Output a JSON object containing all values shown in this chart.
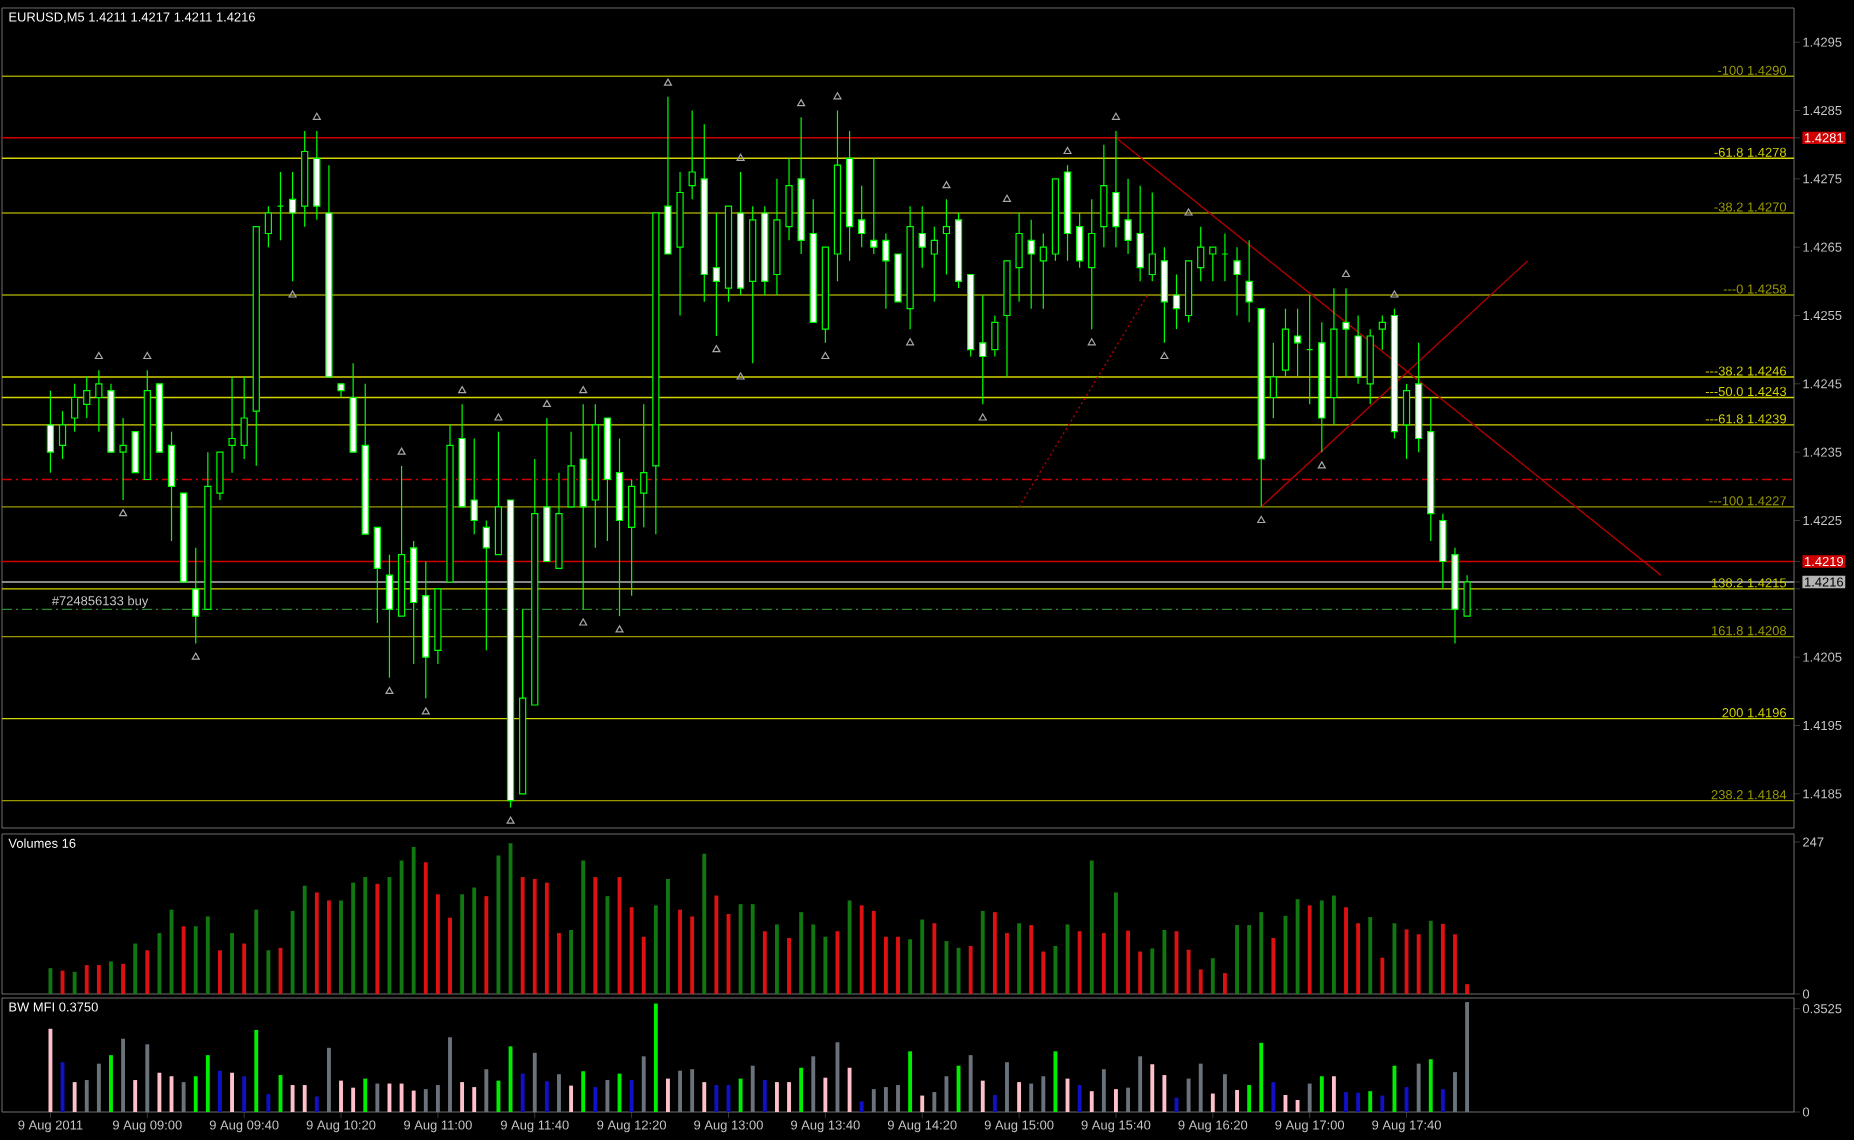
{
  "chart_data": [
    {
      "type": "candlestick",
      "title": "EURUSD,M5  1.4211 1.4217 1.4211 1.4216",
      "color": "#00ff00",
      "x": [
        "2011-08-09T08:20",
        "2011-08-09T08:25",
        "2011-08-09T08:30",
        "2011-08-09T08:35",
        "2011-08-09T08:40",
        "2011-08-09T08:45",
        "2011-08-09T08:50",
        "2011-08-09T08:55",
        "2011-08-09T09:00",
        "2011-08-09T09:05",
        "2011-08-09T09:10",
        "2011-08-09T09:15",
        "2011-08-09T09:20",
        "2011-08-09T09:25",
        "2011-08-09T09:30",
        "2011-08-09T09:35",
        "2011-08-09T09:40",
        "2011-08-09T09:45",
        "2011-08-09T09:50",
        "2011-08-09T09:55",
        "2011-08-09T10:00",
        "2011-08-09T10:05",
        "2011-08-09T10:10",
        "2011-08-09T10:15",
        "2011-08-09T10:20",
        "2011-08-09T10:25",
        "2011-08-09T10:30",
        "2011-08-09T10:35",
        "2011-08-09T10:40",
        "2011-08-09T10:45",
        "2011-08-09T10:50",
        "2011-08-09T10:55",
        "2011-08-09T11:00",
        "2011-08-09T11:05",
        "2011-08-09T11:10",
        "2011-08-09T11:15",
        "2011-08-09T11:20",
        "2011-08-09T11:25",
        "2011-08-09T11:30",
        "2011-08-09T11:35",
        "2011-08-09T11:40",
        "2011-08-09T11:45",
        "2011-08-09T11:50",
        "2011-08-09T11:55",
        "2011-08-09T12:00",
        "2011-08-09T12:05",
        "2011-08-09T12:10",
        "2011-08-09T12:15",
        "2011-08-09T12:20",
        "2011-08-09T12:25",
        "2011-08-09T12:30",
        "2011-08-09T12:35",
        "2011-08-09T12:40",
        "2011-08-09T12:45",
        "2011-08-09T12:50",
        "2011-08-09T12:55",
        "2011-08-09T13:00",
        "2011-08-09T13:05",
        "2011-08-09T13:10",
        "2011-08-09T13:15",
        "2011-08-09T13:20",
        "2011-08-09T13:25",
        "2011-08-09T13:30",
        "2011-08-09T13:35",
        "2011-08-09T13:40",
        "2011-08-09T13:45",
        "2011-08-09T13:50",
        "2011-08-09T13:55",
        "2011-08-09T14:00",
        "2011-08-09T14:05",
        "2011-08-09T14:10",
        "2011-08-09T14:15",
        "2011-08-09T14:20",
        "2011-08-09T14:25",
        "2011-08-09T14:30",
        "2011-08-09T14:35",
        "2011-08-09T14:40",
        "2011-08-09T14:45",
        "2011-08-09T14:50",
        "2011-08-09T14:55",
        "2011-08-09T15:00",
        "2011-08-09T15:05",
        "2011-08-09T15:10",
        "2011-08-09T15:15",
        "2011-08-09T15:20",
        "2011-08-09T15:25",
        "2011-08-09T15:30",
        "2011-08-09T15:35",
        "2011-08-09T15:40",
        "2011-08-09T15:45",
        "2011-08-09T15:50",
        "2011-08-09T15:55",
        "2011-08-09T16:00",
        "2011-08-09T16:05",
        "2011-08-09T16:10",
        "2011-08-09T16:15",
        "2011-08-09T16:20",
        "2011-08-09T16:25",
        "2011-08-09T16:30",
        "2011-08-09T16:35",
        "2011-08-09T16:40",
        "2011-08-09T16:45",
        "2011-08-09T16:50",
        "2011-08-09T16:55",
        "2011-08-09T17:00",
        "2011-08-09T17:05",
        "2011-08-09T17:10",
        "2011-08-09T17:15",
        "2011-08-09T17:20",
        "2011-08-09T17:25",
        "2011-08-09T17:30",
        "2011-08-09T17:35",
        "2011-08-09T17:40",
        "2011-08-09T17:45",
        "2011-08-09T17:50",
        "2011-08-09T17:55",
        "2011-08-09T18:00",
        "2011-08-09T18:05"
      ],
      "ohlc": [
        [
          1.4239,
          1.4244,
          1.4232,
          1.4235
        ],
        [
          1.4236,
          1.4241,
          1.4234,
          1.4239
        ],
        [
          1.424,
          1.4245,
          1.4238,
          1.4243
        ],
        [
          1.4242,
          1.4246,
          1.424,
          1.4244
        ],
        [
          1.4243,
          1.4247,
          1.4238,
          1.4245
        ],
        [
          1.4244,
          1.4245,
          1.4235,
          1.4235
        ],
        [
          1.4235,
          1.424,
          1.4228,
          1.4236
        ],
        [
          1.4238,
          1.4238,
          1.4232,
          1.4232
        ],
        [
          1.4231,
          1.4247,
          1.4231,
          1.4244
        ],
        [
          1.4245,
          1.4245,
          1.4235,
          1.4235
        ],
        [
          1.4236,
          1.4238,
          1.4222,
          1.423
        ],
        [
          1.4229,
          1.4229,
          1.4216,
          1.4216
        ],
        [
          1.4215,
          1.4221,
          1.4207,
          1.4211
        ],
        [
          1.4212,
          1.4235,
          1.4212,
          1.423
        ],
        [
          1.4229,
          1.4235,
          1.4228,
          1.4235
        ],
        [
          1.4236,
          1.4246,
          1.4232,
          1.4237
        ],
        [
          1.4236,
          1.4246,
          1.4234,
          1.424
        ],
        [
          1.4241,
          1.4268,
          1.4233,
          1.4268
        ],
        [
          1.4267,
          1.4271,
          1.4265,
          1.427
        ],
        [
          1.4271,
          1.4276,
          1.4266,
          1.4271
        ],
        [
          1.4272,
          1.4276,
          1.426,
          1.427
        ],
        [
          1.4271,
          1.4282,
          1.4268,
          1.4279
        ],
        [
          1.4278,
          1.4282,
          1.4269,
          1.4271
        ],
        [
          1.427,
          1.4277,
          1.4246,
          1.4246
        ],
        [
          1.4245,
          1.4245,
          1.4243,
          1.4244
        ],
        [
          1.4243,
          1.4248,
          1.4235,
          1.4235
        ],
        [
          1.4236,
          1.4245,
          1.4223,
          1.4223
        ],
        [
          1.4224,
          1.4224,
          1.421,
          1.4218
        ],
        [
          1.4217,
          1.422,
          1.4202,
          1.4212
        ],
        [
          1.4211,
          1.4233,
          1.4211,
          1.422
        ],
        [
          1.4221,
          1.4222,
          1.4204,
          1.4213
        ],
        [
          1.4214,
          1.4219,
          1.4199,
          1.4205
        ],
        [
          1.4206,
          1.4215,
          1.4204,
          1.4215
        ],
        [
          1.4216,
          1.4239,
          1.4216,
          1.4236
        ],
        [
          1.4237,
          1.4242,
          1.4227,
          1.4227
        ],
        [
          1.4228,
          1.4237,
          1.4223,
          1.4225
        ],
        [
          1.4224,
          1.4225,
          1.4206,
          1.4221
        ],
        [
          1.422,
          1.4238,
          1.422,
          1.4227
        ],
        [
          1.4228,
          1.4228,
          1.4183,
          1.4184
        ],
        [
          1.4185,
          1.4212,
          1.4185,
          1.4199
        ],
        [
          1.4198,
          1.4234,
          1.4198,
          1.4226
        ],
        [
          1.4227,
          1.424,
          1.4219,
          1.4219
        ],
        [
          1.4218,
          1.4232,
          1.4218,
          1.4226
        ],
        [
          1.4227,
          1.4238,
          1.4227,
          1.4233
        ],
        [
          1.4234,
          1.4242,
          1.4212,
          1.4227
        ],
        [
          1.4228,
          1.4242,
          1.4221,
          1.4239
        ],
        [
          1.424,
          1.424,
          1.4222,
          1.4231
        ],
        [
          1.4232,
          1.4237,
          1.4211,
          1.4225
        ],
        [
          1.4224,
          1.4231,
          1.4214,
          1.423
        ],
        [
          1.4229,
          1.4242,
          1.4224,
          1.4232
        ],
        [
          1.4233,
          1.427,
          1.4223,
          1.427
        ],
        [
          1.4271,
          1.4287,
          1.4264,
          1.4264
        ],
        [
          1.4265,
          1.4276,
          1.4255,
          1.4273
        ],
        [
          1.4274,
          1.4285,
          1.4272,
          1.4276
        ],
        [
          1.4275,
          1.4283,
          1.4257,
          1.4261
        ],
        [
          1.4262,
          1.427,
          1.4252,
          1.426
        ],
        [
          1.4259,
          1.4271,
          1.4257,
          1.4271
        ],
        [
          1.427,
          1.4276,
          1.4258,
          1.4259
        ],
        [
          1.426,
          1.4271,
          1.4248,
          1.4269
        ],
        [
          1.427,
          1.4271,
          1.4258,
          1.426
        ],
        [
          1.4261,
          1.4275,
          1.4258,
          1.4269
        ],
        [
          1.4268,
          1.4278,
          1.4266,
          1.4274
        ],
        [
          1.4275,
          1.4284,
          1.4264,
          1.4266
        ],
        [
          1.4267,
          1.4272,
          1.4254,
          1.4254
        ],
        [
          1.4253,
          1.4265,
          1.4251,
          1.4265
        ],
        [
          1.4264,
          1.4285,
          1.426,
          1.4277
        ],
        [
          1.4278,
          1.4282,
          1.4263,
          1.4268
        ],
        [
          1.4269,
          1.4274,
          1.4265,
          1.4267
        ],
        [
          1.4266,
          1.4278,
          1.4264,
          1.4265
        ],
        [
          1.4266,
          1.4267,
          1.4256,
          1.4263
        ],
        [
          1.4264,
          1.4264,
          1.4257,
          1.4257
        ],
        [
          1.4256,
          1.4271,
          1.4253,
          1.4268
        ],
        [
          1.4267,
          1.4271,
          1.4262,
          1.4265
        ],
        [
          1.4264,
          1.4268,
          1.4257,
          1.4266
        ],
        [
          1.4267,
          1.4272,
          1.4261,
          1.4268
        ],
        [
          1.4269,
          1.427,
          1.4259,
          1.426
        ],
        [
          1.4261,
          1.4261,
          1.4249,
          1.425
        ],
        [
          1.4251,
          1.4258,
          1.4242,
          1.4249
        ],
        [
          1.425,
          1.4255,
          1.4249,
          1.4254
        ],
        [
          1.4255,
          1.4263,
          1.4246,
          1.4263
        ],
        [
          1.4262,
          1.427,
          1.4257,
          1.4267
        ],
        [
          1.4266,
          1.4269,
          1.4256,
          1.4264
        ],
        [
          1.4263,
          1.4267,
          1.4256,
          1.4265
        ],
        [
          1.4264,
          1.4275,
          1.4263,
          1.4275
        ],
        [
          1.4276,
          1.4277,
          1.4263,
          1.4267
        ],
        [
          1.4268,
          1.427,
          1.4262,
          1.4263
        ],
        [
          1.4262,
          1.4272,
          1.4253,
          1.4267
        ],
        [
          1.4268,
          1.428,
          1.4265,
          1.4274
        ],
        [
          1.4273,
          1.4282,
          1.4265,
          1.4268
        ],
        [
          1.4269,
          1.4275,
          1.4264,
          1.4266
        ],
        [
          1.4267,
          1.4274,
          1.426,
          1.4262
        ],
        [
          1.4261,
          1.4273,
          1.426,
          1.4264
        ],
        [
          1.4263,
          1.4265,
          1.4251,
          1.4257
        ],
        [
          1.4258,
          1.4261,
          1.4253,
          1.4256
        ],
        [
          1.4255,
          1.4263,
          1.4254,
          1.4263
        ],
        [
          1.4262,
          1.4268,
          1.426,
          1.4265
        ],
        [
          1.4264,
          1.4265,
          1.426,
          1.4265
        ],
        [
          1.4264,
          1.4267,
          1.426,
          1.4264
        ],
        [
          1.4263,
          1.4265,
          1.4255,
          1.4261
        ],
        [
          1.426,
          1.4266,
          1.4254,
          1.4257
        ],
        [
          1.4256,
          1.4256,
          1.4227,
          1.4234
        ],
        [
          1.4243,
          1.4251,
          1.424,
          1.4246
        ],
        [
          1.4247,
          1.4256,
          1.4246,
          1.4253
        ],
        [
          1.4252,
          1.4256,
          1.4246,
          1.4251
        ],
        [
          1.425,
          1.4258,
          1.4242,
          1.425
        ],
        [
          1.4251,
          1.4254,
          1.4235,
          1.424
        ],
        [
          1.4243,
          1.4259,
          1.4239,
          1.4253
        ],
        [
          1.4254,
          1.4259,
          1.4246,
          1.4253
        ],
        [
          1.4252,
          1.4255,
          1.4245,
          1.4246
        ],
        [
          1.4245,
          1.4253,
          1.4242,
          1.4252
        ],
        [
          1.4253,
          1.4255,
          1.425,
          1.4254
        ],
        [
          1.4255,
          1.4256,
          1.4237,
          1.4238
        ],
        [
          1.4239,
          1.4245,
          1.4234,
          1.4244
        ],
        [
          1.4245,
          1.4251,
          1.4235,
          1.4237
        ],
        [
          1.4238,
          1.4243,
          1.4222,
          1.4226
        ],
        [
          1.4225,
          1.4226,
          1.4215,
          1.4219
        ],
        [
          1.422,
          1.4221,
          1.4207,
          1.4212
        ],
        [
          1.4211,
          1.4217,
          1.4211,
          1.4216
        ]
      ],
      "xlim": [
        "2011-08-09T08:00",
        "2011-08-09T20:20"
      ],
      "ylim": [
        1.418,
        1.43
      ],
      "yticks": [
        1.4295,
        1.4285,
        1.4281,
        1.4275,
        1.4265,
        1.4255,
        1.4245,
        1.4235,
        1.4225,
        1.4219,
        {
          "value": 1.4215,
          "label": null
        },
        1.4216,
        1.4205,
        1.4195,
        1.4185
      ],
      "tick_labels": "y",
      "series": [
        {
          "type": "scatter",
          "marker": "triangle",
          "color": "#a8a8a8",
          "x": [
            "2011-08-09T08:40",
            "2011-08-09T09:00",
            "2011-08-09T10:10",
            "2011-08-09T10:45",
            "2011-08-09T11:10",
            "2011-08-09T11:25",
            "2011-08-09T11:45",
            "2011-08-09T12:00",
            "2011-08-09T12:35",
            "2011-08-09T13:05",
            "2011-08-09T13:30",
            "2011-08-09T13:45",
            "2011-08-09T14:30",
            "2011-08-09T14:55",
            "2011-08-09T15:20",
            "2011-08-09T15:40",
            "2011-08-09T16:10",
            "2011-08-09T17:15",
            "2011-08-09T17:35"
          ],
          "values": [
            1.4249,
            1.4249,
            1.4284,
            1.4235,
            1.4244,
            1.424,
            1.4242,
            1.4244,
            1.4289,
            1.4278,
            1.4286,
            1.4287,
            1.4274,
            1.4272,
            1.4279,
            1.4284,
            1.427,
            1.4261,
            1.4258
          ]
        },
        {
          "type": "scatter",
          "marker": "triangle",
          "color": "#a8a8a8",
          "x": [
            "2011-08-09T08:50",
            "2011-08-09T09:20",
            "2011-08-09T10:00",
            "2011-08-09T10:40",
            "2011-08-09T10:55",
            "2011-08-09T11:30",
            "2011-08-09T12:00",
            "2011-08-09T12:15",
            "2011-08-09T12:55",
            "2011-08-09T13:05",
            "2011-08-09T13:40",
            "2011-08-09T14:15",
            "2011-08-09T14:45",
            "2011-08-09T15:30",
            "2011-08-09T16:00",
            "2011-08-09T16:40",
            "2011-08-09T17:05"
          ],
          "values": [
            1.4226,
            1.4205,
            1.4258,
            1.42,
            1.4197,
            1.4181,
            1.421,
            1.4209,
            1.425,
            1.4246,
            1.4249,
            1.4251,
            1.424,
            1.4251,
            1.4249,
            1.4225,
            1.4233
          ]
        },
        {
          "type": "line",
          "color": "#b00000",
          "x": [
            "2011-08-09T15:40",
            "2011-08-09T19:25"
          ],
          "values": [
            1.4281,
            1.4217
          ]
        },
        {
          "type": "line",
          "color": "#b00000",
          "x": [
            "2011-08-09T16:40",
            "2011-08-09T18:30"
          ],
          "values": [
            1.4227,
            1.4263
          ]
        },
        {
          "type": "line",
          "color": "#b00000",
          "line_style": "dotted",
          "x": [
            "2011-08-09T15:00",
            "2011-08-09T15:53"
          ],
          "values": [
            1.4227,
            1.4258
          ]
        }
      ],
      "ref_lines": [
        {
          "axis": "y",
          "value": 1.4281,
          "color": "#d00000"
        },
        {
          "axis": "y",
          "value": 1.4219,
          "color": "#d00000"
        },
        {
          "axis": "y",
          "value": 1.4231,
          "color": "#d00000",
          "line_style": "dashed"
        },
        {
          "axis": "y",
          "value": 1.4212,
          "color": "#2a8a2a",
          "line_style": "dashed"
        },
        {
          "axis": "y",
          "value": 1.4216,
          "color": "#b4b4b4"
        },
        {
          "axis": "y",
          "value": 1.429,
          "label": "-100 1.4290",
          "color": "#9a9a00"
        },
        {
          "axis": "y",
          "value": 1.4278,
          "label": "-61.8 1.4278",
          "color": "#d4d400"
        },
        {
          "axis": "y",
          "value": 1.427,
          "label": "-38.2 1.4270",
          "color": "#9a9a00"
        },
        {
          "axis": "y",
          "value": 1.4258,
          "label": "---0 1.4258",
          "color": "#9a9a00"
        },
        {
          "axis": "y",
          "value": 1.4246,
          "label": "---38.2 1.4246",
          "color": "#d4d400"
        },
        {
          "axis": "y",
          "value": 1.4243,
          "label": "---50.0 1.4243",
          "color": "#d4d400"
        },
        {
          "axis": "y",
          "value": 1.4239,
          "label": "---61.8 1.4239",
          "color": "#d4d400"
        },
        {
          "axis": "y",
          "value": 1.4227,
          "label": "---100 1.4227",
          "color": "#9a9a00"
        },
        {
          "axis": "y",
          "value": 1.4215,
          "label": "138.2 1.4215",
          "color": "#d4d400"
        },
        {
          "axis": "y",
          "value": 1.4208,
          "label": "161.8 1.4208",
          "color": "#9a9a00"
        },
        {
          "axis": "y",
          "value": 1.4196,
          "label": "200 1.4196",
          "color": "#d4d400"
        },
        {
          "axis": "y",
          "value": 1.4184,
          "label": "238.2 1.4184",
          "color": "#9a9a00"
        }
      ],
      "annotations": [
        {
          "text": "#724856133 buy",
          "x": "2011-08-09T08:20",
          "y": 1.4212
        }
      ]
    },
    {
      "type": "bar",
      "title": "Volumes 16",
      "x": [
        "2011-08-09T08:20",
        "2011-08-09T08:25",
        "2011-08-09T08:30",
        "2011-08-09T08:35",
        "2011-08-09T08:40",
        "2011-08-09T08:45",
        "2011-08-09T08:50",
        "2011-08-09T08:55",
        "2011-08-09T09:00",
        "2011-08-09T09:05",
        "2011-08-09T09:10",
        "2011-08-09T09:15",
        "2011-08-09T09:20",
        "2011-08-09T09:25",
        "2011-08-09T09:30",
        "2011-08-09T09:35",
        "2011-08-09T09:40",
        "2011-08-09T09:45",
        "2011-08-09T09:50",
        "2011-08-09T09:55",
        "2011-08-09T10:00",
        "2011-08-09T10:05",
        "2011-08-09T10:10",
        "2011-08-09T10:15",
        "2011-08-09T10:20",
        "2011-08-09T10:25",
        "2011-08-09T10:30",
        "2011-08-09T10:35",
        "2011-08-09T10:40",
        "2011-08-09T10:45",
        "2011-08-09T10:50",
        "2011-08-09T10:55",
        "2011-08-09T11:00",
        "2011-08-09T11:05",
        "2011-08-09T11:10",
        "2011-08-09T11:15",
        "2011-08-09T11:20",
        "2011-08-09T11:25",
        "2011-08-09T11:30",
        "2011-08-09T11:35",
        "2011-08-09T11:40",
        "2011-08-09T11:45",
        "2011-08-09T11:50",
        "2011-08-09T11:55",
        "2011-08-09T12:00",
        "2011-08-09T12:05",
        "2011-08-09T12:10",
        "2011-08-09T12:15",
        "2011-08-09T12:20",
        "2011-08-09T12:25",
        "2011-08-09T12:30",
        "2011-08-09T12:35",
        "2011-08-09T12:40",
        "2011-08-09T12:45",
        "2011-08-09T12:50",
        "2011-08-09T12:55",
        "2011-08-09T13:00",
        "2011-08-09T13:05",
        "2011-08-09T13:10",
        "2011-08-09T13:15",
        "2011-08-09T13:20",
        "2011-08-09T13:25",
        "2011-08-09T13:30",
        "2011-08-09T13:35",
        "2011-08-09T13:40",
        "2011-08-09T13:45",
        "2011-08-09T13:50",
        "2011-08-09T13:55",
        "2011-08-09T14:00",
        "2011-08-09T14:05",
        "2011-08-09T14:10",
        "2011-08-09T14:15",
        "2011-08-09T14:20",
        "2011-08-09T14:25",
        "2011-08-09T14:30",
        "2011-08-09T14:35",
        "2011-08-09T14:40",
        "2011-08-09T14:45",
        "2011-08-09T14:50",
        "2011-08-09T14:55",
        "2011-08-09T15:00",
        "2011-08-09T15:05",
        "2011-08-09T15:10",
        "2011-08-09T15:15",
        "2011-08-09T15:20",
        "2011-08-09T15:25",
        "2011-08-09T15:30",
        "2011-08-09T15:35",
        "2011-08-09T15:40",
        "2011-08-09T15:45",
        "2011-08-09T15:50",
        "2011-08-09T15:55",
        "2011-08-09T16:00",
        "2011-08-09T16:05",
        "2011-08-09T16:10",
        "2011-08-09T16:15",
        "2011-08-09T16:20",
        "2011-08-09T16:25",
        "2011-08-09T16:30",
        "2011-08-09T16:35",
        "2011-08-09T16:40",
        "2011-08-09T16:45",
        "2011-08-09T16:50",
        "2011-08-09T16:55",
        "2011-08-09T17:00",
        "2011-08-09T17:05",
        "2011-08-09T17:10",
        "2011-08-09T17:15",
        "2011-08-09T17:20",
        "2011-08-09T17:25",
        "2011-08-09T17:30",
        "2011-08-09T17:35",
        "2011-08-09T17:40",
        "2011-08-09T17:45",
        "2011-08-09T17:50",
        "2011-08-09T17:55",
        "2011-08-09T18:00",
        "2011-08-09T18:05"
      ],
      "values": [
        42,
        38,
        36,
        47,
        47,
        53,
        49,
        82,
        71,
        99,
        137,
        110,
        110,
        126,
        71,
        99,
        82,
        137,
        71,
        75,
        135,
        176,
        165,
        152,
        152,
        181,
        190,
        179,
        190,
        217,
        239,
        214,
        162,
        124,
        162,
        173,
        159,
        225,
        245,
        190,
        187,
        181,
        99,
        104,
        217,
        190,
        159,
        190,
        141,
        93,
        144,
        187,
        137,
        126,
        228,
        160,
        130,
        146,
        146,
        102,
        113,
        91,
        133,
        113,
        93,
        102,
        152,
        144,
        135,
        93,
        93,
        89,
        121,
        115,
        86,
        75,
        78,
        135,
        133,
        99,
        115,
        112,
        69,
        78,
        113,
        102,
        217,
        99,
        165,
        103,
        69,
        74,
        104,
        102,
        72,
        40,
        58,
        34,
        112,
        112,
        133,
        91,
        127,
        154,
        144,
        152,
        160,
        141,
        115,
        125,
        59,
        115,
        105,
        97,
        119,
        114,
        97,
        16
      ],
      "colors": [
        "#117711",
        "#dd1111",
        "#117711",
        "#dd1111",
        "#dd1111",
        "#117711",
        "#dd1111",
        "#117711",
        "#dd1111",
        "#117711",
        "#117711",
        "#dd1111",
        "#117711",
        "#117711",
        "#dd1111",
        "#117711",
        "#dd1111",
        "#117711",
        "#117711",
        "#dd1111",
        "#117711",
        "#117711",
        "#dd1111",
        "#dd1111",
        "#117711",
        "#117711",
        "#117711",
        "#dd1111",
        "#117711",
        "#117711",
        "#117711",
        "#dd1111",
        "#dd1111",
        "#dd1111",
        "#117711",
        "#117711",
        "#dd1111",
        "#117711",
        "#117711",
        "#dd1111",
        "#dd1111",
        "#dd1111",
        "#dd1111",
        "#117711",
        "#117711",
        "#dd1111",
        "#117711",
        "#dd1111",
        "#dd1111",
        "#dd1111",
        "#117711",
        "#117711",
        "#dd1111",
        "#dd1111",
        "#117711",
        "#dd1111",
        "#dd1111",
        "#117711",
        "#117711",
        "#dd1111",
        "#117711",
        "#dd1111",
        "#117711",
        "#117711",
        "#117711",
        "#dd1111",
        "#117711",
        "#dd1111",
        "#dd1111",
        "#dd1111",
        "#dd1111",
        "#117711",
        "#117711",
        "#dd1111",
        "#117711",
        "#117711",
        "#dd1111",
        "#117711",
        "#dd1111",
        "#dd1111",
        "#117711",
        "#dd1111",
        "#dd1111",
        "#117711",
        "#117711",
        "#dd1111",
        "#117711",
        "#dd1111",
        "#117711",
        "#dd1111",
        "#dd1111",
        "#117711",
        "#117711",
        "#dd1111",
        "#dd1111",
        "#dd1111",
        "#117711",
        "#dd1111",
        "#117711",
        "#117711",
        "#117711",
        "#dd1111",
        "#117711",
        "#117711",
        "#dd1111",
        "#117711",
        "#117711",
        "#dd1111",
        "#dd1111",
        "#117711",
        "#dd1111",
        "#117711",
        "#dd1111",
        "#dd1111",
        "#117711",
        "#dd1111",
        "#dd1111",
        "#dd1111"
      ],
      "xlim": [
        "2011-08-09T08:00",
        "2011-08-09T20:20"
      ],
      "ylim": [
        0,
        260
      ],
      "yticks": [
        0,
        247
      ],
      "tick_labels": "y"
    },
    {
      "type": "bar",
      "title": "BW MFI 0.3750",
      "x": [
        "2011-08-09T08:20",
        "2011-08-09T08:25",
        "2011-08-09T08:30",
        "2011-08-09T08:35",
        "2011-08-09T08:40",
        "2011-08-09T08:45",
        "2011-08-09T08:50",
        "2011-08-09T08:55",
        "2011-08-09T09:00",
        "2011-08-09T09:05",
        "2011-08-09T09:10",
        "2011-08-09T09:15",
        "2011-08-09T09:20",
        "2011-08-09T09:25",
        "2011-08-09T09:30",
        "2011-08-09T09:35",
        "2011-08-09T09:40",
        "2011-08-09T09:45",
        "2011-08-09T09:50",
        "2011-08-09T09:55",
        "2011-08-09T10:00",
        "2011-08-09T10:05",
        "2011-08-09T10:10",
        "2011-08-09T10:15",
        "2011-08-09T10:20",
        "2011-08-09T10:25",
        "2011-08-09T10:30",
        "2011-08-09T10:35",
        "2011-08-09T10:40",
        "2011-08-09T10:45",
        "2011-08-09T10:50",
        "2011-08-09T10:55",
        "2011-08-09T11:00",
        "2011-08-09T11:05",
        "2011-08-09T11:10",
        "2011-08-09T11:15",
        "2011-08-09T11:20",
        "2011-08-09T11:25",
        "2011-08-09T11:30",
        "2011-08-09T11:35",
        "2011-08-09T11:40",
        "2011-08-09T11:45",
        "2011-08-09T11:50",
        "2011-08-09T11:55",
        "2011-08-09T12:00",
        "2011-08-09T12:05",
        "2011-08-09T12:10",
        "2011-08-09T12:15",
        "2011-08-09T12:20",
        "2011-08-09T12:25",
        "2011-08-09T12:30",
        "2011-08-09T12:35",
        "2011-08-09T12:40",
        "2011-08-09T12:45",
        "2011-08-09T12:50",
        "2011-08-09T12:55",
        "2011-08-09T13:00",
        "2011-08-09T13:05",
        "2011-08-09T13:10",
        "2011-08-09T13:15",
        "2011-08-09T13:20",
        "2011-08-09T13:25",
        "2011-08-09T13:30",
        "2011-08-09T13:35",
        "2011-08-09T13:40",
        "2011-08-09T13:45",
        "2011-08-09T13:50",
        "2011-08-09T13:55",
        "2011-08-09T14:00",
        "2011-08-09T14:05",
        "2011-08-09T14:10",
        "2011-08-09T14:15",
        "2011-08-09T14:20",
        "2011-08-09T14:25",
        "2011-08-09T14:30",
        "2011-08-09T14:35",
        "2011-08-09T14:40",
        "2011-08-09T14:45",
        "2011-08-09T14:50",
        "2011-08-09T14:55",
        "2011-08-09T15:00",
        "2011-08-09T15:05",
        "2011-08-09T15:10",
        "2011-08-09T15:15",
        "2011-08-09T15:20",
        "2011-08-09T15:25",
        "2011-08-09T15:30",
        "2011-08-09T15:35",
        "2011-08-09T15:40",
        "2011-08-09T15:45",
        "2011-08-09T15:50",
        "2011-08-09T15:55",
        "2011-08-09T16:00",
        "2011-08-09T16:05",
        "2011-08-09T16:10",
        "2011-08-09T16:15",
        "2011-08-09T16:20",
        "2011-08-09T16:25",
        "2011-08-09T16:30",
        "2011-08-09T16:35",
        "2011-08-09T16:40",
        "2011-08-09T16:45",
        "2011-08-09T16:50",
        "2011-08-09T16:55",
        "2011-08-09T17:00",
        "2011-08-09T17:05",
        "2011-08-09T17:10",
        "2011-08-09T17:15",
        "2011-08-09T17:20",
        "2011-08-09T17:25",
        "2011-08-09T17:30",
        "2011-08-09T17:35",
        "2011-08-09T17:40",
        "2011-08-09T17:45",
        "2011-08-09T17:50",
        "2011-08-09T17:55",
        "2011-08-09T18:00",
        "2011-08-09T18:05"
      ],
      "values": [
        0.284,
        0.17,
        0.102,
        0.109,
        0.165,
        0.194,
        0.25,
        0.109,
        0.231,
        0.134,
        0.122,
        0.102,
        0.122,
        0.194,
        0.141,
        0.134,
        0.122,
        0.28,
        0.061,
        0.126,
        0.092,
        0.092,
        0.053,
        0.219,
        0.107,
        0.083,
        0.114,
        0.097,
        0.097,
        0.097,
        0.073,
        0.078,
        0.092,
        0.255,
        0.102,
        0.085,
        0.146,
        0.107,
        0.224,
        0.131,
        0.202,
        0.105,
        0.129,
        0.09,
        0.139,
        0.085,
        0.109,
        0.131,
        0.109,
        0.19,
        0.37,
        0.114,
        0.141,
        0.146,
        0.102,
        0.092,
        0.092,
        0.114,
        0.158,
        0.109,
        0.102,
        0.102,
        0.151,
        0.19,
        0.117,
        0.238,
        0.151,
        0.036,
        0.078,
        0.085,
        0.092,
        0.207,
        0.056,
        0.068,
        0.122,
        0.158,
        0.194,
        0.107,
        0.058,
        0.17,
        0.102,
        0.097,
        0.122,
        0.207,
        0.114,
        0.092,
        0.071,
        0.146,
        0.078,
        0.083,
        0.19,
        0.163,
        0.126,
        0.049,
        0.114,
        0.165,
        0.063,
        0.129,
        0.075,
        0.092,
        0.236,
        0.102,
        0.058,
        0.041,
        0.097,
        0.122,
        0.122,
        0.068,
        0.066,
        0.071,
        0.056,
        0.158,
        0.085,
        0.165,
        0.18,
        0.078,
        0.136,
        0.375
      ],
      "colors": [
        "#ffc0cb",
        "#1010c8",
        "#ffc0cb",
        "#6a737b",
        "#6a737b",
        "#00ee00",
        "#6a737b",
        "#ffc0cb",
        "#6a737b",
        "#ffc0cb",
        "#ffc0cb",
        "#6a737b",
        "#00ee00",
        "#00ee00",
        "#1010c8",
        "#ffc0cb",
        "#1010c8",
        "#00ee00",
        "#1010c8",
        "#00ee00",
        "#ffc0cb",
        "#ffc0cb",
        "#1010c8",
        "#6a737b",
        "#ffc0cb",
        "#ffc0cb",
        "#00ee00",
        "#6a737b",
        "#ffc0cb",
        "#ffc0cb",
        "#ffc0cb",
        "#6a737b",
        "#6a737b",
        "#6a737b",
        "#ffc0cb",
        "#ffc0cb",
        "#6a737b",
        "#00ee00",
        "#00ee00",
        "#1010c8",
        "#6a737b",
        "#1010c8",
        "#6a737b",
        "#ffc0cb",
        "#00ee00",
        "#1010c8",
        "#6a737b",
        "#00ee00",
        "#1010c8",
        "#6a737b",
        "#00ee00",
        "#ffc0cb",
        "#6a737b",
        "#6a737b",
        "#ffc0cb",
        "#1010c8",
        "#1010c8",
        "#00ee00",
        "#6a737b",
        "#1010c8",
        "#ffc0cb",
        "#ffc0cb",
        "#00ee00",
        "#6a737b",
        "#ffc0cb",
        "#6a737b",
        "#ffc0cb",
        "#1010c8",
        "#6a737b",
        "#6a737b",
        "#6a737b",
        "#00ee00",
        "#ffc0cb",
        "#6a737b",
        "#6a737b",
        "#00ee00",
        "#6a737b",
        "#ffc0cb",
        "#1010c8",
        "#6a737b",
        "#ffc0cb",
        "#6a737b",
        "#6a737b",
        "#00ee00",
        "#ffc0cb",
        "#1010c8",
        "#ffc0cb",
        "#6a737b",
        "#ffc0cb",
        "#6a737b",
        "#6a737b",
        "#ffc0cb",
        "#ffc0cb",
        "#1010c8",
        "#6a737b",
        "#6a737b",
        "#ffc0cb",
        "#6a737b",
        "#ffc0cb",
        "#00ee00",
        "#00ee00",
        "#1010c8",
        "#ffc0cb",
        "#ffc0cb",
        "#6a737b",
        "#00ee00",
        "#ffc0cb",
        "#1010c8",
        "#1010c8",
        "#00ee00",
        "#1010c8",
        "#00ee00",
        "#1010c8",
        "#6a737b",
        "#00ee00",
        "#1010c8",
        "#6a737b",
        "#6a737b"
      ],
      "xlim": [
        "2011-08-09T08:00",
        "2011-08-09T20:20"
      ],
      "ylim": [
        0,
        0.389
      ],
      "yticks": [
        0,
        0.3525
      ],
      "xticks": [
        {
          "value": "2011-08-09T08:20",
          "label": "9 Aug 2011"
        },
        {
          "value": "2011-08-09T09:00",
          "label": "9 Aug 09:00"
        },
        {
          "value": "2011-08-09T09:40",
          "label": "9 Aug 09:40"
        },
        {
          "value": "2011-08-09T10:20",
          "label": "9 Aug 10:20"
        },
        {
          "value": "2011-08-09T11:00",
          "label": "9 Aug 11:00"
        },
        {
          "value": "2011-08-09T11:40",
          "label": "9 Aug 11:40"
        },
        {
          "value": "2011-08-09T12:20",
          "label": "9 Aug 12:20"
        },
        {
          "value": "2011-08-09T13:00",
          "label": "9 Aug 13:00"
        },
        {
          "value": "2011-08-09T13:40",
          "label": "9 Aug 13:40"
        },
        {
          "value": "2011-08-09T14:20",
          "label": "9 Aug 14:20"
        },
        {
          "value": "2011-08-09T15:00",
          "label": "9 Aug 15:00"
        },
        {
          "value": "2011-08-09T15:40",
          "label": "9 Aug 15:40"
        },
        {
          "value": "2011-08-09T16:20",
          "label": "9 Aug 16:20"
        },
        {
          "value": "2011-08-09T17:00",
          "label": "9 Aug 17:00"
        },
        {
          "value": "2011-08-09T17:40",
          "label": "9 Aug 17:40"
        }
      ]
    }
  ]
}
